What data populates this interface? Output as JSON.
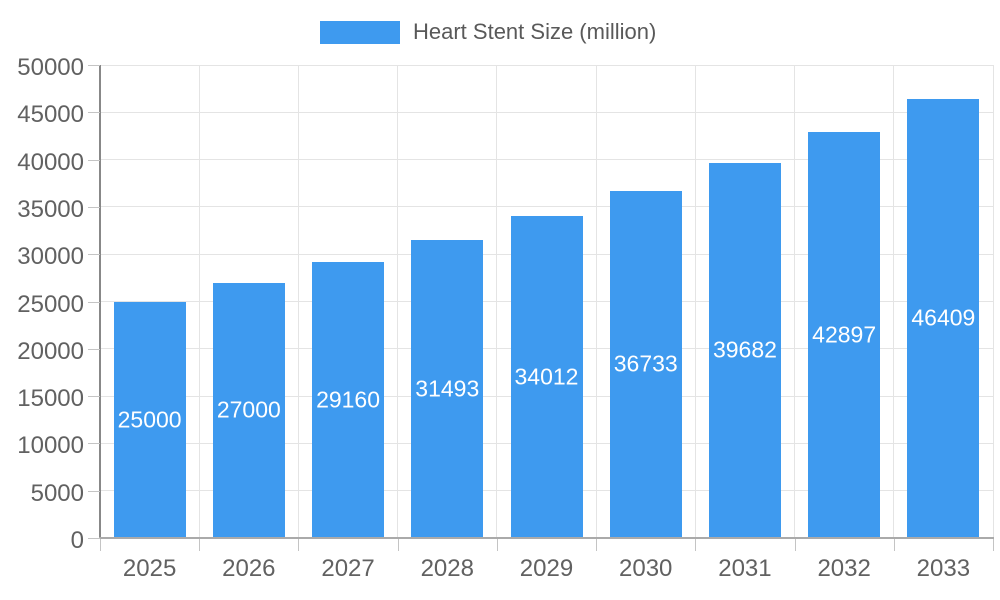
{
  "legend": {
    "label": "Heart Stent Size (million)"
  },
  "chart_data": {
    "type": "bar",
    "title": "Heart Stent Size (million)",
    "series_name": "Heart Stent Size (million)",
    "categories": [
      "2025",
      "2026",
      "2027",
      "2028",
      "2029",
      "2030",
      "2031",
      "2032",
      "2033"
    ],
    "values": [
      25000,
      27000,
      29160,
      31493,
      34012,
      36733,
      39682,
      42897,
      46409
    ],
    "bar_labels": [
      "25000",
      "27000",
      "29160",
      "31493",
      "34012",
      "36733",
      "39682",
      "42897",
      "46409"
    ],
    "xlabel": "",
    "ylabel": "",
    "ylim": [
      0,
      50000
    ],
    "y_tick_step": 5000,
    "y_ticks": [
      0,
      5000,
      10000,
      15000,
      20000,
      25000,
      30000,
      35000,
      40000,
      45000,
      50000
    ],
    "grid": true,
    "legend_position": "top",
    "colors": {
      "bar": "#3E9AEF",
      "grid": "#e4e4e4",
      "y_axis": "#888888",
      "x_axis": "#aaaaaa",
      "tick": "#c4c4c4",
      "axis_text": "#616161",
      "bar_label_text": "#ffffff"
    }
  }
}
